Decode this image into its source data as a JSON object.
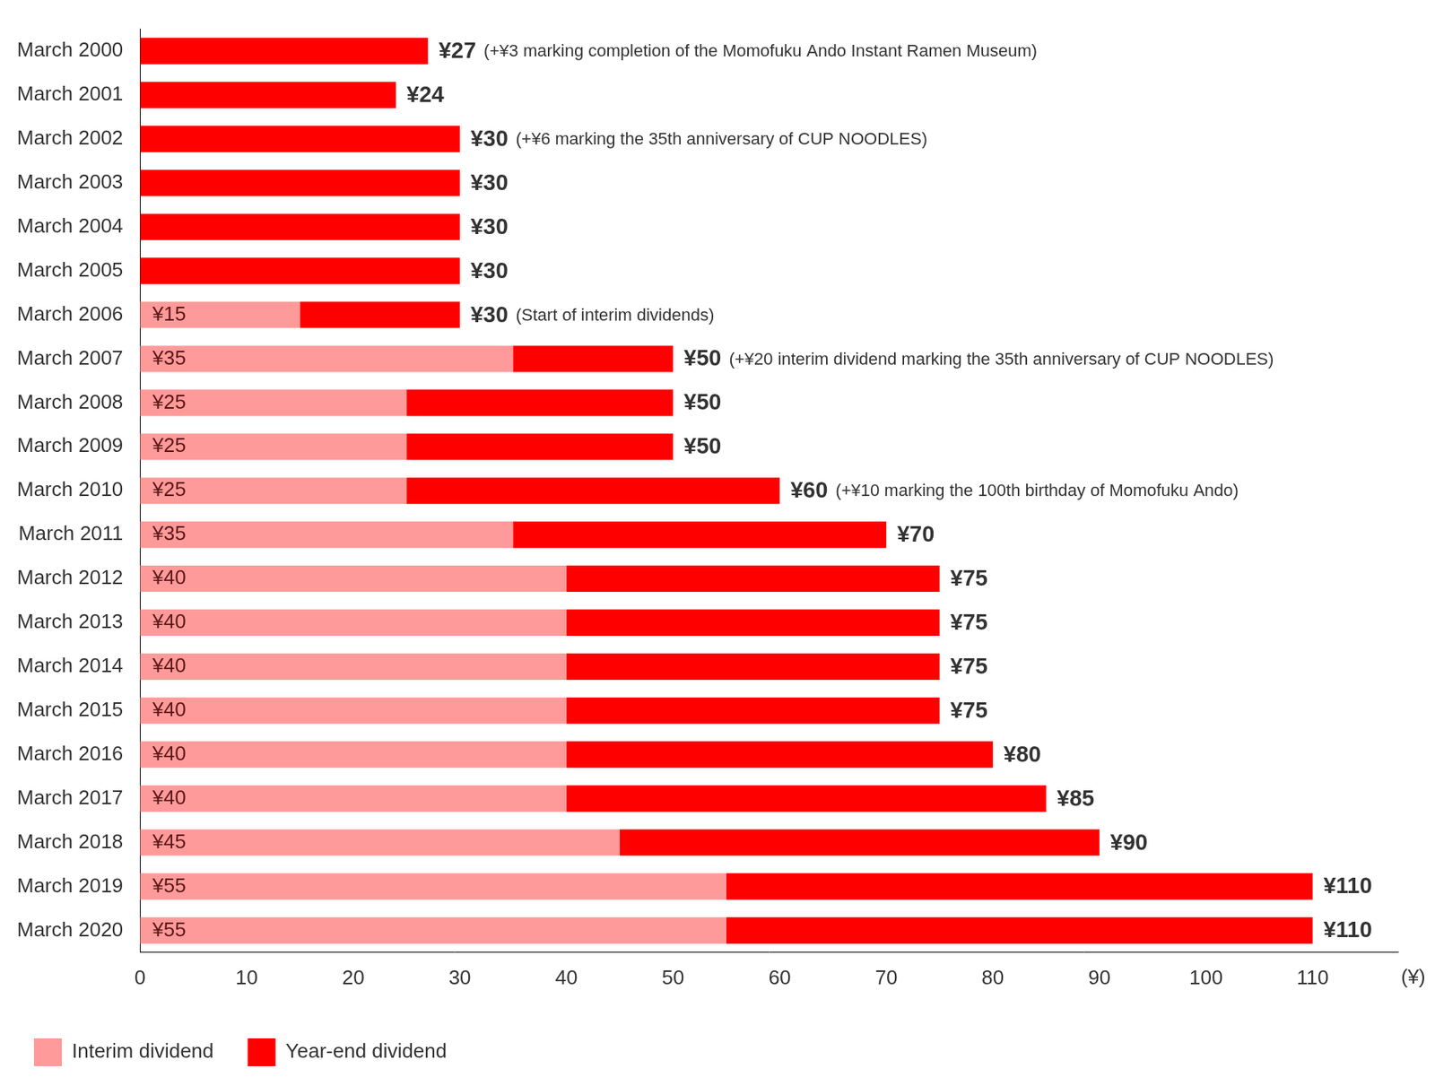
{
  "chart_data": {
    "type": "bar",
    "orientation": "horizontal",
    "stacked": true,
    "grid": false,
    "legend": "bottom-left",
    "x_label": "(¥)",
    "categories": [
      "March 2000",
      "March 2001",
      "March 2002",
      "March 2003",
      "March 2004",
      "March 2005",
      "March 2006",
      "March 2007",
      "March 2008",
      "March 2009",
      "March 2010",
      "March 2011",
      "March 2012",
      "March 2013",
      "March 2014",
      "March 2015",
      "March 2016",
      "March 2017",
      "March 2018",
      "March 2019",
      "March 2020"
    ],
    "series": [
      {
        "name": "Interim dividend",
        "color": "#ff9a9a",
        "values": [
          null,
          null,
          null,
          null,
          null,
          null,
          15,
          35,
          25,
          25,
          25,
          35,
          40,
          40,
          40,
          40,
          40,
          40,
          45,
          55,
          55
        ],
        "value_labels": [
          null,
          null,
          null,
          null,
          null,
          null,
          "¥15",
          "¥35",
          "¥25",
          "¥25",
          "¥25",
          "¥35",
          "¥40",
          "¥40",
          "¥40",
          "¥40",
          "¥40",
          "¥40",
          "¥45",
          "¥55",
          "¥55"
        ]
      },
      {
        "name": "Year-end dividend",
        "color": "#ff0000",
        "values": [
          27,
          24,
          30,
          30,
          30,
          30,
          15,
          15,
          25,
          25,
          35,
          35,
          35,
          35,
          35,
          35,
          40,
          45,
          45,
          55,
          55
        ]
      }
    ],
    "totals": {
      "values": [
        27,
        24,
        30,
        30,
        30,
        30,
        30,
        50,
        50,
        50,
        60,
        70,
        75,
        75,
        75,
        75,
        80,
        85,
        90,
        110,
        110
      ],
      "value_labels": [
        "¥27",
        "¥24",
        "¥30",
        "¥30",
        "¥30",
        "¥30",
        "¥30",
        "¥50",
        "¥50",
        "¥50",
        "¥60",
        "¥70",
        "¥75",
        "¥75",
        "¥75",
        "¥75",
        "¥80",
        "¥85",
        "¥90",
        "¥110",
        "¥110"
      ]
    },
    "annotations": [
      "(+¥3 marking completion of the Momofuku Ando Instant Ramen Museum)",
      null,
      "(+¥6 marking the 35th anniversary of CUP NOODLES)",
      null,
      null,
      null,
      "(Start of interim dividends)",
      "(+¥20 interim dividend marking the 35th anniversary of CUP NOODLES)",
      null,
      null,
      "(+¥10 marking the 100th birthday of Momofuku Ando)",
      null,
      null,
      null,
      null,
      null,
      null,
      null,
      null,
      null,
      null
    ],
    "xlim": [
      0,
      118
    ],
    "xticks": [
      0,
      10,
      20,
      30,
      40,
      50,
      60,
      70,
      80,
      90,
      100,
      110
    ]
  }
}
